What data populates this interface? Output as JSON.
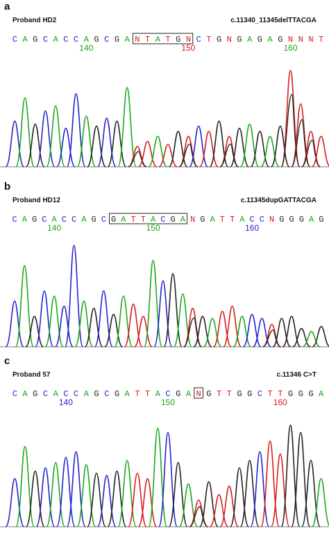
{
  "colors": {
    "A": "#1aa81a",
    "C": "#2323cc",
    "G": "#222222",
    "T": "#d71c1c",
    "N": "#d71c1c"
  },
  "panels": [
    {
      "letter": "a",
      "proband": "Proband HD2",
      "mutation": "c.11340_11345delTTACGA",
      "sequence": [
        "C",
        "A",
        "G",
        "C",
        "A",
        "C",
        "C",
        "A",
        "G",
        "C",
        "G",
        "A",
        "N",
        "T",
        "A",
        "T",
        "G",
        "N",
        "C",
        "T",
        "G",
        "N",
        "G",
        "A",
        "G",
        "A",
        "G",
        "N",
        "N",
        "N",
        "T"
      ],
      "box_bases": [
        12,
        17
      ],
      "numbers": [
        {
          "text": "140",
          "base": 7,
          "color": "#1aa81a"
        },
        {
          "text": "150",
          "base": 17,
          "color": "#d71c1c"
        },
        {
          "text": "160",
          "base": 27,
          "color": "#1aa81a"
        }
      ]
    },
    {
      "letter": "b",
      "proband": "Proband HD12",
      "mutation": "c.11345dupGATTACGA",
      "sequence": [
        "C",
        "A",
        "G",
        "C",
        "A",
        "C",
        "C",
        "A",
        "G",
        "C",
        "G",
        "A",
        "T",
        "T",
        "A",
        "C",
        "G",
        "A",
        "N",
        "G",
        "A",
        "T",
        "T",
        "A",
        "C",
        "C",
        "N",
        "G",
        "G",
        "G",
        "A",
        "G"
      ],
      "box_bases": [
        10,
        17
      ],
      "numbers": [
        {
          "text": "140",
          "base": 4,
          "color": "#1aa81a"
        },
        {
          "text": "150",
          "base": 14,
          "color": "#1aa81a"
        },
        {
          "text": "160",
          "base": 24,
          "color": "#2323cc"
        }
      ]
    },
    {
      "letter": "c",
      "proband": "Proband 57",
      "mutation": "c.11346 C>T",
      "sequence": [
        "C",
        "A",
        "G",
        "C",
        "A",
        "C",
        "C",
        "A",
        "G",
        "C",
        "G",
        "A",
        "T",
        "T",
        "A",
        "C",
        "G",
        "A",
        "N",
        "G",
        "T",
        "T",
        "G",
        "G",
        "C",
        "T",
        "T",
        "G",
        "G",
        "G",
        "A"
      ],
      "box_bases": [
        18,
        18
      ],
      "numbers": [
        {
          "text": "140",
          "base": 5,
          "color": "#2323cc"
        },
        {
          "text": "150",
          "base": 15,
          "color": "#1aa81a"
        },
        {
          "text": "160",
          "base": 26,
          "color": "#d71c1c"
        }
      ]
    }
  ]
}
